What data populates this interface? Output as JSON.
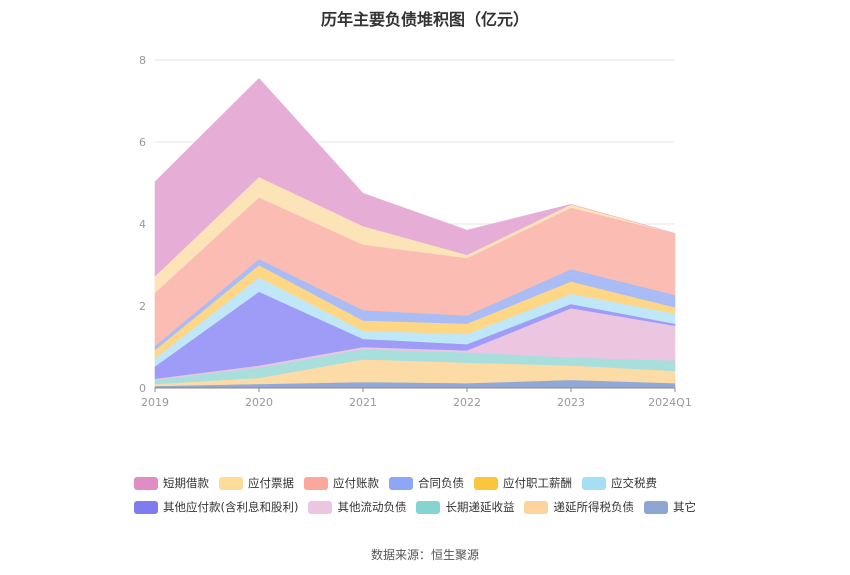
{
  "chart_data": {
    "type": "area",
    "stacked": true,
    "title": "历年主要负债堆积图（亿元）",
    "categories": [
      "2019",
      "2020",
      "2021",
      "2022",
      "2023",
      "2024Q1"
    ],
    "ylim": [
      0,
      8
    ],
    "yticks": [
      "0",
      "2",
      "4",
      "6",
      "8"
    ],
    "grid": true,
    "legend_position": "bottom",
    "series": [
      {
        "name": "其它",
        "color": "#91a8d8",
        "values": [
          0.05,
          0.1,
          0.15,
          0.12,
          0.2,
          0.12
        ]
      },
      {
        "name": "递延所得税负债",
        "color": "#fddba6",
        "values": [
          0.05,
          0.15,
          0.55,
          0.5,
          0.35,
          0.3
        ]
      },
      {
        "name": "长期递延收益",
        "color": "#a8dfdc",
        "values": [
          0.1,
          0.25,
          0.25,
          0.25,
          0.2,
          0.25
        ]
      },
      {
        "name": "其他流动负债",
        "color": "#ecc5e1",
        "values": [
          0.03,
          0.05,
          0.05,
          0.05,
          1.2,
          0.85
        ]
      },
      {
        "name": "其他应付款(含利息和股利)",
        "color": "#9e9cf6",
        "values": [
          0.3,
          1.8,
          0.2,
          0.15,
          0.1,
          0.05
        ]
      },
      {
        "name": "应交税费",
        "color": "#bfe7f7",
        "values": [
          0.2,
          0.35,
          0.2,
          0.25,
          0.25,
          0.25
        ]
      },
      {
        "name": "应付职工薪酬",
        "color": "#fdd786",
        "values": [
          0.2,
          0.3,
          0.25,
          0.25,
          0.3,
          0.15
        ]
      },
      {
        "name": "合同负债",
        "color": "#a9bcf6",
        "values": [
          0.1,
          0.15,
          0.25,
          0.2,
          0.3,
          0.3
        ]
      },
      {
        "name": "应付账款",
        "color": "#fbbcb4",
        "values": [
          1.3,
          1.5,
          1.6,
          1.4,
          1.5,
          1.5
        ]
      },
      {
        "name": "应付票据",
        "color": "#fde3b8",
        "values": [
          0.4,
          0.5,
          0.45,
          0.08,
          0.08,
          0.0
        ]
      },
      {
        "name": "短期借款",
        "color": "#e6aed7",
        "values": [
          2.3,
          2.4,
          0.8,
          0.6,
          0.0,
          0.0
        ]
      }
    ]
  },
  "legend": {
    "rows": [
      [
        {
          "label": "短期借款",
          "color": "#e08dc6"
        },
        {
          "label": "应付票据",
          "color": "#fddb98"
        },
        {
          "label": "应付账款",
          "color": "#f9a89b"
        },
        {
          "label": "合同负债",
          "color": "#8ea7f4"
        },
        {
          "label": "应付职工薪酬",
          "color": "#fdc53c"
        },
        {
          "label": "应交税费",
          "color": "#a6def6"
        }
      ],
      [
        {
          "label": "其他应付款(含利息和股利)",
          "color": "#7f7cf2"
        },
        {
          "label": "其他流动负债",
          "color": "#ecc5e1"
        },
        {
          "label": "长期递延收益",
          "color": "#84d5d1"
        },
        {
          "label": "递延所得税负债",
          "color": "#fdd49b"
        },
        {
          "label": "其它",
          "color": "#8fa6d4"
        }
      ]
    ]
  },
  "source": "数据来源：恒生聚源"
}
